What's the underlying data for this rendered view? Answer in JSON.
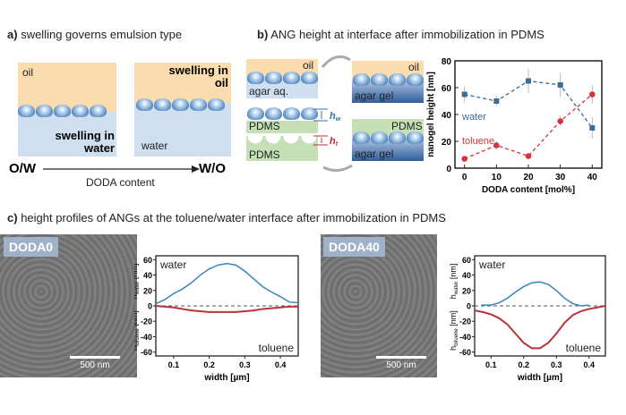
{
  "panel_a": {
    "letter": "a)",
    "title": "swelling governs emulsion type",
    "left": {
      "oil": "oil",
      "swelling": "swelling in water"
    },
    "right": {
      "swelling": "swelling in oil",
      "water": "water"
    },
    "ow": "O/W",
    "wo": "W/O",
    "arrow_label": "DODA content"
  },
  "panel_b": {
    "letter": "b)",
    "title": "ANG height at interface after immobilization in PDMS",
    "schematic": {
      "oil1": "oil",
      "agar_aq": "agar aq.",
      "oil2": "oil",
      "agar_gel1": "agar gel",
      "pdms_top": "PDMS",
      "agar_gel2": "agar gel",
      "pdms1": "PDMS",
      "pdms2": "PDMS",
      "hw": "h",
      "hw_sub": "w",
      "ht": "h",
      "ht_sub": "t"
    }
  },
  "panel_c": {
    "letter": "c)",
    "title": "height profiles of ANGs at the toluene/water interface after immobilization in PDMS",
    "sem": [
      {
        "label": "DODA0",
        "scale": "500 nm"
      },
      {
        "label": "DODA40",
        "scale": "500 nm"
      }
    ]
  },
  "colors": {
    "water": "#3a86b4",
    "toluene": "#d8323a",
    "oil": "#fbdcae",
    "water_phase": "#cfdff0",
    "pdms": "#c4e0b4"
  },
  "chart_data": [
    {
      "type": "scatter",
      "xlabel": "DODA content [mol%]",
      "ylabel": "nanogel height [nm]",
      "xlim": [
        -3,
        43
      ],
      "ylim": [
        0,
        80
      ],
      "xticks": [
        0,
        10,
        20,
        30,
        40
      ],
      "yticks": [
        0,
        20,
        40,
        60,
        80
      ],
      "x": [
        0,
        10,
        20,
        30,
        40
      ],
      "series": [
        {
          "name": "water",
          "values": [
            55,
            50,
            65,
            62,
            30
          ],
          "errors": [
            6,
            4,
            9,
            9,
            8
          ],
          "marker": "square",
          "color": "#3a6d99"
        },
        {
          "name": "toluene",
          "values": [
            7,
            17,
            9,
            35,
            55
          ],
          "errors": [
            2,
            3,
            2,
            4,
            7
          ],
          "marker": "circle",
          "color": "#d8323a"
        }
      ]
    },
    {
      "type": "line",
      "xlabel": "width [µm]",
      "ylabel_top": "h",
      "ylabel_top_sub": "water",
      "ylabel_bottom": "h",
      "ylabel_bottom_sub": "toluene",
      "ylabel_unit": "[nm]",
      "xlim": [
        0.05,
        0.45
      ],
      "ylim": [
        -65,
        65
      ],
      "xticks": [
        0.1,
        0.2,
        0.3,
        0.4
      ],
      "yticks": [
        60,
        40,
        20,
        0,
        -20,
        -40,
        -60
      ],
      "series": [
        {
          "name": "water",
          "x": [
            0.05,
            0.075,
            0.1,
            0.125,
            0.15,
            0.175,
            0.2,
            0.225,
            0.25,
            0.275,
            0.3,
            0.325,
            0.35,
            0.375,
            0.4,
            0.425,
            0.45
          ],
          "values": [
            3,
            8,
            16,
            22,
            30,
            40,
            48,
            53,
            55,
            53,
            45,
            35,
            25,
            18,
            12,
            5,
            4
          ]
        },
        {
          "name": "toluene",
          "x": [
            0.05,
            0.075,
            0.1,
            0.125,
            0.15,
            0.175,
            0.2,
            0.225,
            0.25,
            0.275,
            0.3,
            0.325,
            0.35,
            0.375,
            0.4,
            0.425,
            0.45
          ],
          "values": [
            0,
            -1,
            -2,
            -4,
            -6,
            -7,
            -8,
            -8,
            -8,
            -8,
            -7,
            -6,
            -4,
            -3,
            -2,
            -1,
            -1
          ]
        }
      ]
    },
    {
      "type": "line",
      "xlabel": "width [µm]",
      "ylabel_top": "h",
      "ylabel_top_sub": "water",
      "ylabel_bottom": "h",
      "ylabel_bottom_sub": "toluene",
      "ylabel_unit": "[nm]",
      "xlim": [
        0.05,
        0.45
      ],
      "ylim": [
        -65,
        65
      ],
      "xticks": [
        0.1,
        0.2,
        0.3,
        0.4
      ],
      "yticks": [
        60,
        40,
        20,
        0,
        -20,
        -40,
        -60
      ],
      "series": [
        {
          "name": "water",
          "x": [
            0.07,
            0.1,
            0.125,
            0.15,
            0.175,
            0.2,
            0.225,
            0.25,
            0.275,
            0.3,
            0.325,
            0.35,
            0.375,
            0.4
          ],
          "values": [
            1,
            1,
            4,
            10,
            18,
            25,
            30,
            31,
            28,
            20,
            10,
            3,
            0,
            1
          ]
        },
        {
          "name": "toluene",
          "x": [
            0.05,
            0.075,
            0.1,
            0.125,
            0.15,
            0.175,
            0.2,
            0.225,
            0.25,
            0.275,
            0.3,
            0.325,
            0.35,
            0.375,
            0.4,
            0.425,
            0.45
          ],
          "values": [
            -6,
            -8,
            -11,
            -16,
            -24,
            -36,
            -48,
            -55,
            -55,
            -48,
            -36,
            -22,
            -12,
            -7,
            -4,
            -2,
            0
          ]
        }
      ]
    }
  ]
}
